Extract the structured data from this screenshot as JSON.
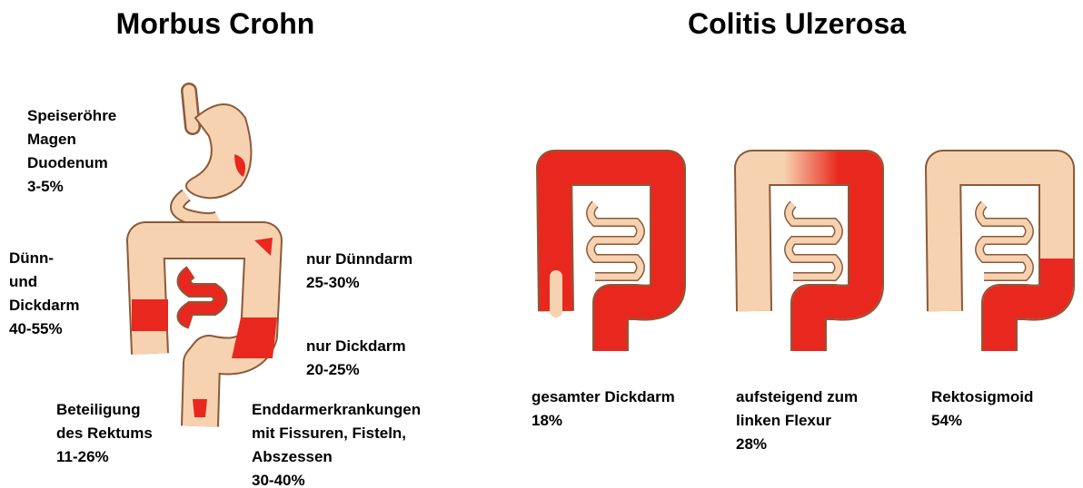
{
  "left": {
    "title": "Morbus Crohn",
    "labels": [
      {
        "lines": [
          "Speiseröhre",
          "Magen",
          "Duodenum",
          "3-5%"
        ]
      },
      {
        "lines": [
          "Dünn-",
          "und",
          "Dickdarm",
          "40-55%"
        ]
      },
      {
        "lines": [
          "nur Dünndarm",
          "25-30%"
        ]
      },
      {
        "lines": [
          "nur Dickdarm",
          "20-25%"
        ]
      },
      {
        "lines": [
          "Beteiligung",
          "des Rektums",
          "11-26%"
        ]
      },
      {
        "lines": [
          "Enddarmerkrankungen",
          "mit Fissuren, Fisteln,",
          "Abszessen",
          "30-40%"
        ]
      }
    ]
  },
  "right": {
    "title": "Colitis Ulzerosa",
    "labels": [
      {
        "lines": [
          "gesamter Dickdarm",
          "18%"
        ]
      },
      {
        "lines": [
          "aufsteigend zum",
          "linken Flexur",
          "28%"
        ]
      },
      {
        "lines": [
          "Rektosigmoid",
          "54%"
        ]
      }
    ]
  }
}
